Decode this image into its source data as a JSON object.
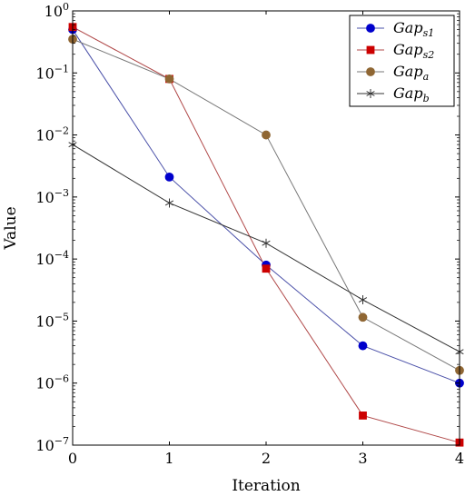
{
  "chart_data": {
    "type": "line",
    "xlabel": "Iteration",
    "ylabel": "Value",
    "x": [
      0,
      1,
      2,
      3,
      4
    ],
    "xlim": [
      0,
      4
    ],
    "ylim": [
      1e-07,
      1
    ],
    "yscale": "log",
    "grid": false,
    "legend_position": "top-right",
    "x_ticks": [
      "0",
      "1",
      "2",
      "3",
      "4"
    ],
    "y_ticks": [
      {
        "base": "10",
        "exp": "0"
      },
      {
        "base": "10",
        "exp": "−1"
      },
      {
        "base": "10",
        "exp": "−2"
      },
      {
        "base": "10",
        "exp": "−3"
      },
      {
        "base": "10",
        "exp": "−4"
      },
      {
        "base": "10",
        "exp": "−5"
      },
      {
        "base": "10",
        "exp": "−6"
      },
      {
        "base": "10",
        "exp": "−7"
      }
    ],
    "y_tick_values": [
      1,
      0.1,
      0.01,
      0.001,
      0.0001,
      1e-05,
      1e-06,
      1e-07
    ],
    "series": [
      {
        "name_base": "Gap",
        "name_sub": "s1",
        "color": "#0000cc",
        "line_color": "#4a50a8",
        "marker": "circle",
        "values": [
          0.5,
          0.0021,
          8e-05,
          4e-06,
          1e-06
        ]
      },
      {
        "name_base": "Gap",
        "name_sub": "s2",
        "color": "#cc0000",
        "line_color": "#b04848",
        "marker": "square",
        "values": [
          0.55,
          0.08,
          7e-05,
          3e-07,
          1.1e-07
        ]
      },
      {
        "name_base": "Gap",
        "name_sub": "a",
        "color": "#8f6633",
        "line_color": "#777777",
        "marker": "circle",
        "values": [
          0.35,
          0.08,
          0.01,
          1.15e-05,
          1.6e-06
        ]
      },
      {
        "name_base": "Gap",
        "name_sub": "b",
        "color": "#333333",
        "line_color": "#333333",
        "marker": "star",
        "values": [
          0.007,
          0.0008,
          0.00018,
          2.2e-05,
          3.2e-06
        ]
      }
    ]
  }
}
